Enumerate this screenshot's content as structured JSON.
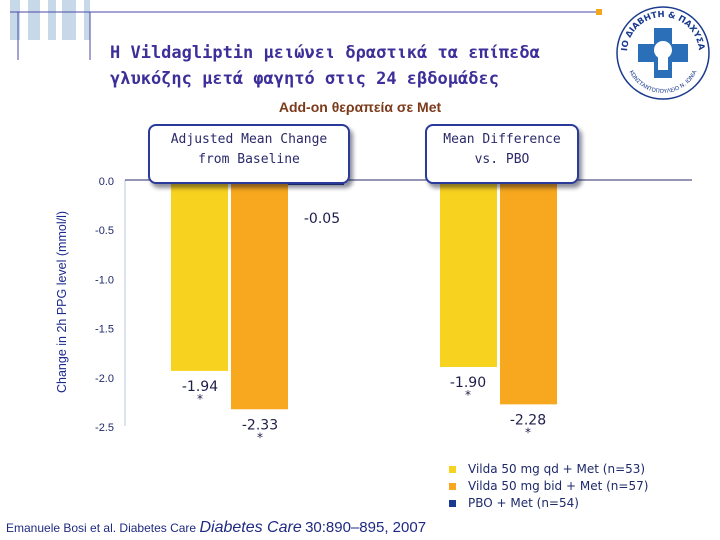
{
  "title": {
    "line1": "Η Vildagliptin μειώνει δραστικά τα επίπεδα",
    "line2": "γλυκόζης μετά φαγητό στις 24 εβδομάδες"
  },
  "subtitle": "Add-on θεραπεία σε Met",
  "panels": {
    "left": {
      "line1": "Adjusted Mean Change",
      "line2": "from Baseline"
    },
    "right": {
      "line1": "Mean Difference",
      "line2": "vs. PBO"
    }
  },
  "legend": [
    {
      "label": "Vilda 50 mg qd + Met (n=53)",
      "color": "#f7d21e"
    },
    {
      "label": "Vilda 50 mg bid + Met (n=57)",
      "color": "#f7a81e"
    },
    {
      "label": "PBO + Met (n=54)",
      "color": "#1a3a8f"
    }
  ],
  "citation": {
    "authors": "Emanuele Bosi et al. Diabetes Care",
    "journal": "Diabetes Care",
    "ref": "30:890–895, 2007"
  },
  "logo": {
    "text": "ΙΑΤΡΕΙΟ ΔΙΑΒΗΤΗ & ΠΑΧΥΣΑΡΚΙΑΣ",
    "text_bottom": "ΚΩΝΣΤΑΝΤΟΠΟΥΛΕΙΟ Ν. ΙΩΝΙΑ"
  },
  "chart_data": {
    "type": "bar",
    "ylabel": "Change in 2h PPG level (mmol/l)",
    "ylim": [
      -2.5,
      0.0
    ],
    "yticks": [
      "0.0",
      "-0.5",
      "-1.0",
      "-1.5",
      "-2.0",
      "-2.5"
    ],
    "ytick_values": [
      0.0,
      -0.5,
      -1.0,
      -1.5,
      -2.0,
      -2.5
    ],
    "grid": false,
    "legend_position": "bottom-right",
    "bars": [
      {
        "group": "Adjusted Mean Change from Baseline",
        "series": "Vilda 50 mg qd + Met (n=53)",
        "value": -1.94,
        "label": "-1.94",
        "significance": "*",
        "color": "#f7d21e"
      },
      {
        "group": "Adjusted Mean Change from Baseline",
        "series": "Vilda 50 mg bid + Met (n=57)",
        "value": -2.33,
        "label": "-2.33",
        "significance": "*",
        "color": "#f7a81e"
      },
      {
        "group": "Adjusted Mean Change from Baseline",
        "series": "PBO + Met (n=54)",
        "value": -0.05,
        "label": "-0.05",
        "significance": "",
        "color": "#1a3a8f"
      },
      {
        "group": "Mean Difference vs. PBO",
        "series": "Vilda 50 mg qd + Met (n=53)",
        "value": -1.9,
        "label": "-1.90",
        "significance": "*",
        "color": "#f7d21e"
      },
      {
        "group": "Mean Difference vs. PBO",
        "series": "Vilda 50 mg bid + Met (n=57)",
        "value": -2.28,
        "label": "-2.28",
        "significance": "*",
        "color": "#f7a81e"
      }
    ]
  }
}
